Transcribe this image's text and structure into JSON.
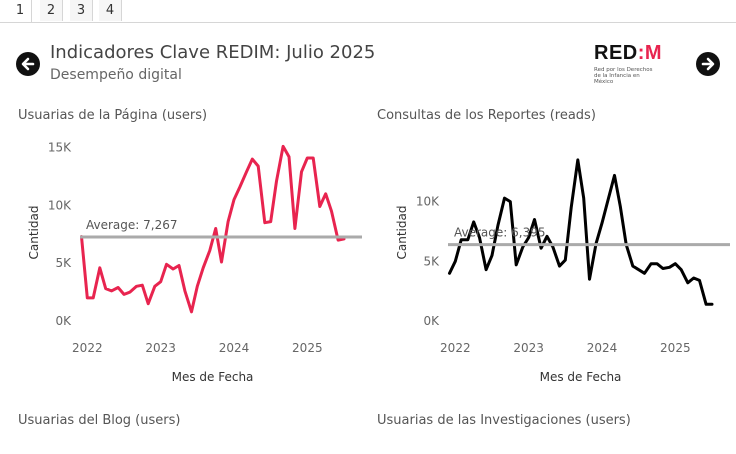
{
  "tabs": [
    {
      "label": "1",
      "active": true
    },
    {
      "label": "2",
      "active": false
    },
    {
      "label": "3",
      "active": false
    },
    {
      "label": "4",
      "active": false
    }
  ],
  "header": {
    "title": "Indicadores Clave REDIM: Julio 2025",
    "subtitle": "Desempeño digital",
    "logo_text_a": "RED",
    "logo_text_b": ":M",
    "logo_tagline": "Red por los Derechos de la Infancia en México",
    "prev_icon": "arrow-left-circle-icon",
    "next_icon": "arrow-right-circle-icon"
  },
  "bottom_titles": {
    "left": "Usuarias del Blog (users)",
    "right": "Usuarias de las Investigaciones (users)"
  },
  "chart_data": [
    {
      "type": "line",
      "title": "Usuarias de la Página (users)",
      "xlabel": "Mes de Fecha",
      "ylabel": "Cantidad",
      "ylim": [
        0,
        16000
      ],
      "yticks": [
        0,
        5000,
        10000,
        15000
      ],
      "ytick_labels": [
        "0K",
        "5K",
        "10K",
        "15K"
      ],
      "xlim": [
        2021.9,
        2025.65
      ],
      "xticks": [
        2022,
        2023,
        2024,
        2025
      ],
      "xtick_labels": [
        "2022",
        "2023",
        "2024",
        "2025"
      ],
      "color": "#e8244f",
      "average": 7267,
      "average_label": "Average: 7,267",
      "x": [
        2021.92,
        2022.0,
        2022.08,
        2022.17,
        2022.25,
        2022.33,
        2022.42,
        2022.5,
        2022.58,
        2022.67,
        2022.75,
        2022.83,
        2022.92,
        2023.0,
        2023.08,
        2023.17,
        2023.25,
        2023.33,
        2023.42,
        2023.5,
        2023.58,
        2023.67,
        2023.75,
        2023.83,
        2023.92,
        2024.0,
        2024.08,
        2024.17,
        2024.25,
        2024.33,
        2024.42,
        2024.5,
        2024.58,
        2024.67,
        2024.75,
        2024.83,
        2024.92,
        2025.0,
        2025.08,
        2025.17,
        2025.25,
        2025.33,
        2025.42,
        2025.5
      ],
      "values": [
        7300,
        2000,
        2000,
        4600,
        2800,
        2600,
        2900,
        2300,
        2500,
        3000,
        3100,
        1500,
        3000,
        3400,
        4900,
        4500,
        4800,
        2600,
        800,
        3000,
        4600,
        6100,
        8000,
        5100,
        8600,
        10500,
        11600,
        12900,
        14000,
        13400,
        8500,
        8600,
        12100,
        15100,
        14200,
        8000,
        12900,
        14100,
        14100,
        9900,
        11000,
        9500,
        7000,
        7100
      ]
    },
    {
      "type": "line",
      "title": "Consultas de los Reportes (reads)",
      "xlabel": "Mes de Fecha",
      "ylabel": "Cantidad",
      "ylim": [
        0,
        15500
      ],
      "yticks": [
        0,
        5000,
        10000
      ],
      "ytick_labels": [
        "0K",
        "5K",
        "10K"
      ],
      "xlim": [
        2021.9,
        2025.65
      ],
      "xticks": [
        2022,
        2023,
        2024,
        2025
      ],
      "xtick_labels": [
        "2022",
        "2023",
        "2024",
        "2025"
      ],
      "color": "#000000",
      "average": 6395,
      "average_label": "Average: 6,395",
      "x": [
        2021.92,
        2022.0,
        2022.08,
        2022.17,
        2022.25,
        2022.33,
        2022.42,
        2022.5,
        2022.58,
        2022.67,
        2022.75,
        2022.83,
        2022.92,
        2023.0,
        2023.08,
        2023.17,
        2023.25,
        2023.33,
        2023.42,
        2023.5,
        2023.58,
        2023.67,
        2023.75,
        2023.83,
        2023.92,
        2024.0,
        2024.08,
        2024.17,
        2024.25,
        2024.33,
        2024.42,
        2024.5,
        2024.58,
        2024.67,
        2024.75,
        2024.83,
        2024.92,
        2025.0,
        2025.08,
        2025.17,
        2025.25,
        2025.33,
        2025.42,
        2025.5
      ],
      "values": [
        4000,
        5000,
        6800,
        6800,
        8300,
        7000,
        4300,
        5500,
        8000,
        10300,
        10000,
        4700,
        6200,
        7000,
        8500,
        6100,
        7100,
        6200,
        4600,
        5100,
        9500,
        13500,
        10300,
        3500,
        6500,
        8200,
        10100,
        12200,
        9600,
        6400,
        4600,
        4300,
        4000,
        4800,
        4800,
        4400,
        4500,
        4800,
        4300,
        3200,
        3600,
        3400,
        1400,
        1400
      ]
    }
  ]
}
